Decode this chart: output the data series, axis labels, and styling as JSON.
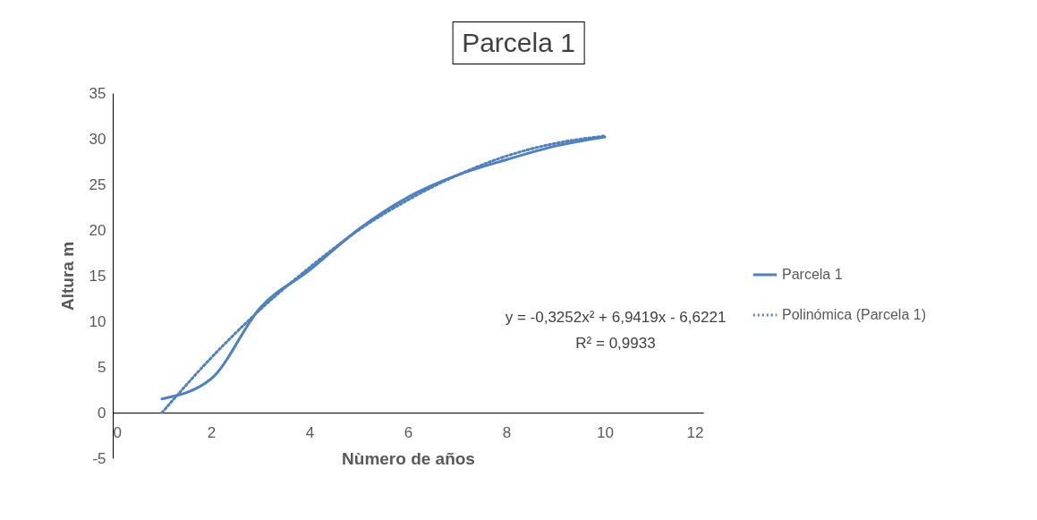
{
  "chart_data": {
    "type": "line",
    "title": "Parcela 1",
    "xlabel": "Nùmero de años",
    "ylabel": "Altura m",
    "x": [
      1,
      2,
      3,
      4,
      5,
      6,
      7,
      8,
      9,
      10
    ],
    "series": [
      {
        "name": "Parcela 1",
        "color": "#4f81bd",
        "line_style": "solid",
        "values": [
          1.5,
          3.7,
          11.5,
          15.6,
          20.1,
          23.6,
          26,
          27.7,
          29.2,
          30.2
        ]
      },
      {
        "name": "Polinómica (Parcela 1)",
        "color": "#4f81bd",
        "line_style": "dotted",
        "values": [
          0,
          6,
          11.3,
          15.9,
          20,
          23.3,
          26,
          28.1,
          29.5,
          30.3
        ]
      }
    ],
    "xlim": [
      0,
      12
    ],
    "xticks": [
      0,
      2,
      4,
      6,
      8,
      10,
      12
    ],
    "ylim": [
      -5,
      35
    ],
    "yticks": [
      -5,
      0,
      5,
      10,
      15,
      20,
      25,
      30,
      35
    ],
    "grid": false,
    "legend": "right",
    "marker": "none",
    "annotations": [
      "y = -0,3252x² + 6,9419x - 6,6221",
      "R² = 0,9933"
    ]
  }
}
